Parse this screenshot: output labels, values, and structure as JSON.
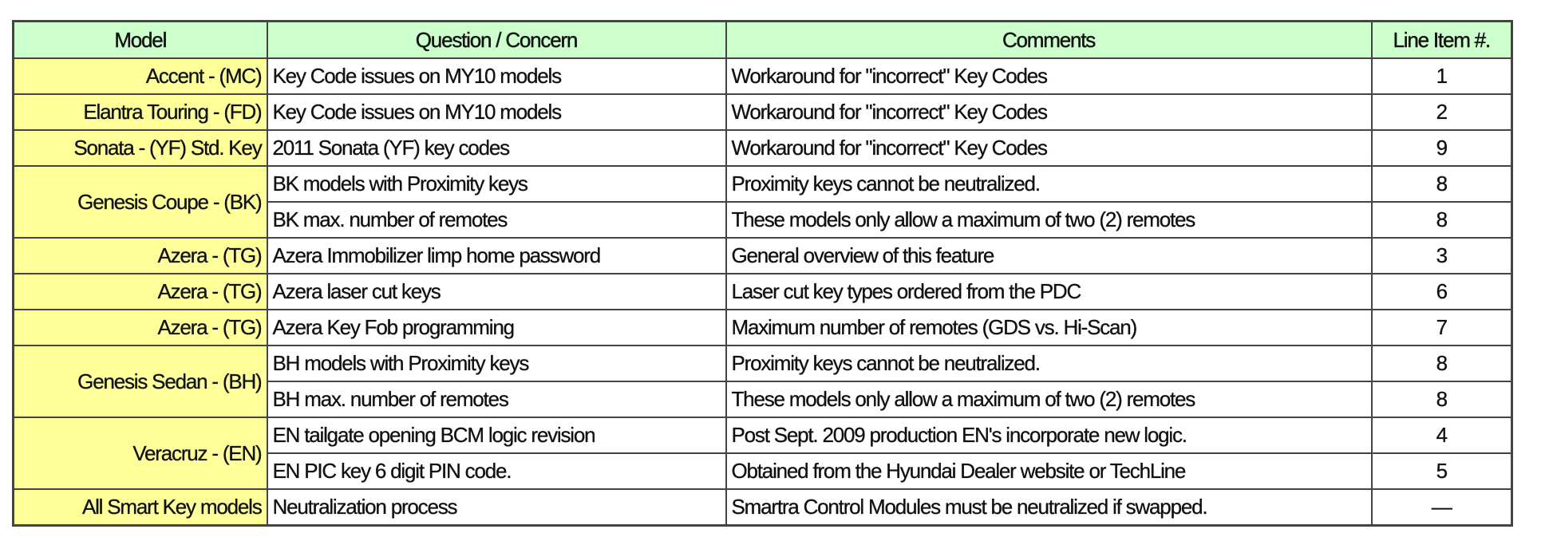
{
  "colors": {
    "header_bg": "#ccffcc",
    "model_bg": "#ffff99",
    "border": "#444444"
  },
  "headers": [
    "Model",
    "Question / Concern",
    "Comments",
    "Line Item #."
  ],
  "groups": [
    {
      "model": "Accent - (MC)",
      "items": [
        {
          "question": "Key Code issues on MY10 models",
          "comment": "Workaround for \"incorrect\" Key Codes",
          "line_item": "1"
        }
      ]
    },
    {
      "model": "Elantra Touring - (FD)",
      "items": [
        {
          "question": "Key Code issues on MY10 models",
          "comment": "Workaround for \"incorrect\" Key Codes",
          "line_item": "2"
        }
      ]
    },
    {
      "model": "Sonata - (YF) Std. Key",
      "items": [
        {
          "question": "2011 Sonata (YF) key codes",
          "comment": "Workaround for \"incorrect\" Key Codes",
          "line_item": "9"
        }
      ]
    },
    {
      "model": "Genesis Coupe - (BK)",
      "items": [
        {
          "question": "BK models with Proximity keys",
          "comment": "Proximity keys cannot be neutralized.",
          "line_item": "8"
        },
        {
          "question": "BK max. number of remotes",
          "comment": "These models only allow a maximum of two (2) remotes",
          "line_item": "8"
        }
      ]
    },
    {
      "model": "Azera - (TG)",
      "items": [
        {
          "question": "Azera Immobilizer limp home password",
          "comment": "General overview of this feature",
          "line_item": "3"
        }
      ]
    },
    {
      "model": "Azera - (TG)",
      "items": [
        {
          "question": "Azera laser cut keys",
          "comment": "Laser cut key types ordered from the PDC",
          "line_item": "6"
        }
      ]
    },
    {
      "model": "Azera - (TG)",
      "items": [
        {
          "question": "Azera Key Fob programming",
          "comment": "Maximum number of remotes (GDS vs. Hi-Scan)",
          "line_item": "7"
        }
      ]
    },
    {
      "model": "Genesis Sedan - (BH)",
      "items": [
        {
          "question": "BH models with Proximity keys",
          "comment": "Proximity keys cannot be neutralized.",
          "line_item": "8"
        },
        {
          "question": "BH max. number of remotes",
          "comment": "These models only allow a maximum of two (2) remotes",
          "line_item": "8"
        }
      ]
    },
    {
      "model": "Veracruz - (EN)",
      "items": [
        {
          "question": "EN tailgate opening BCM logic revision",
          "comment": "Post Sept. 2009 production EN's incorporate new logic.",
          "line_item": "4"
        },
        {
          "question": "EN PIC key 6 digit PIN code.",
          "comment": "Obtained from the Hyundai Dealer website or TechLine",
          "line_item": "5"
        }
      ]
    },
    {
      "model": "All Smart Key models",
      "items": [
        {
          "question": "Neutralization process",
          "comment": "Smartra Control Modules must be neutralized if swapped.",
          "line_item": "—"
        }
      ]
    }
  ]
}
